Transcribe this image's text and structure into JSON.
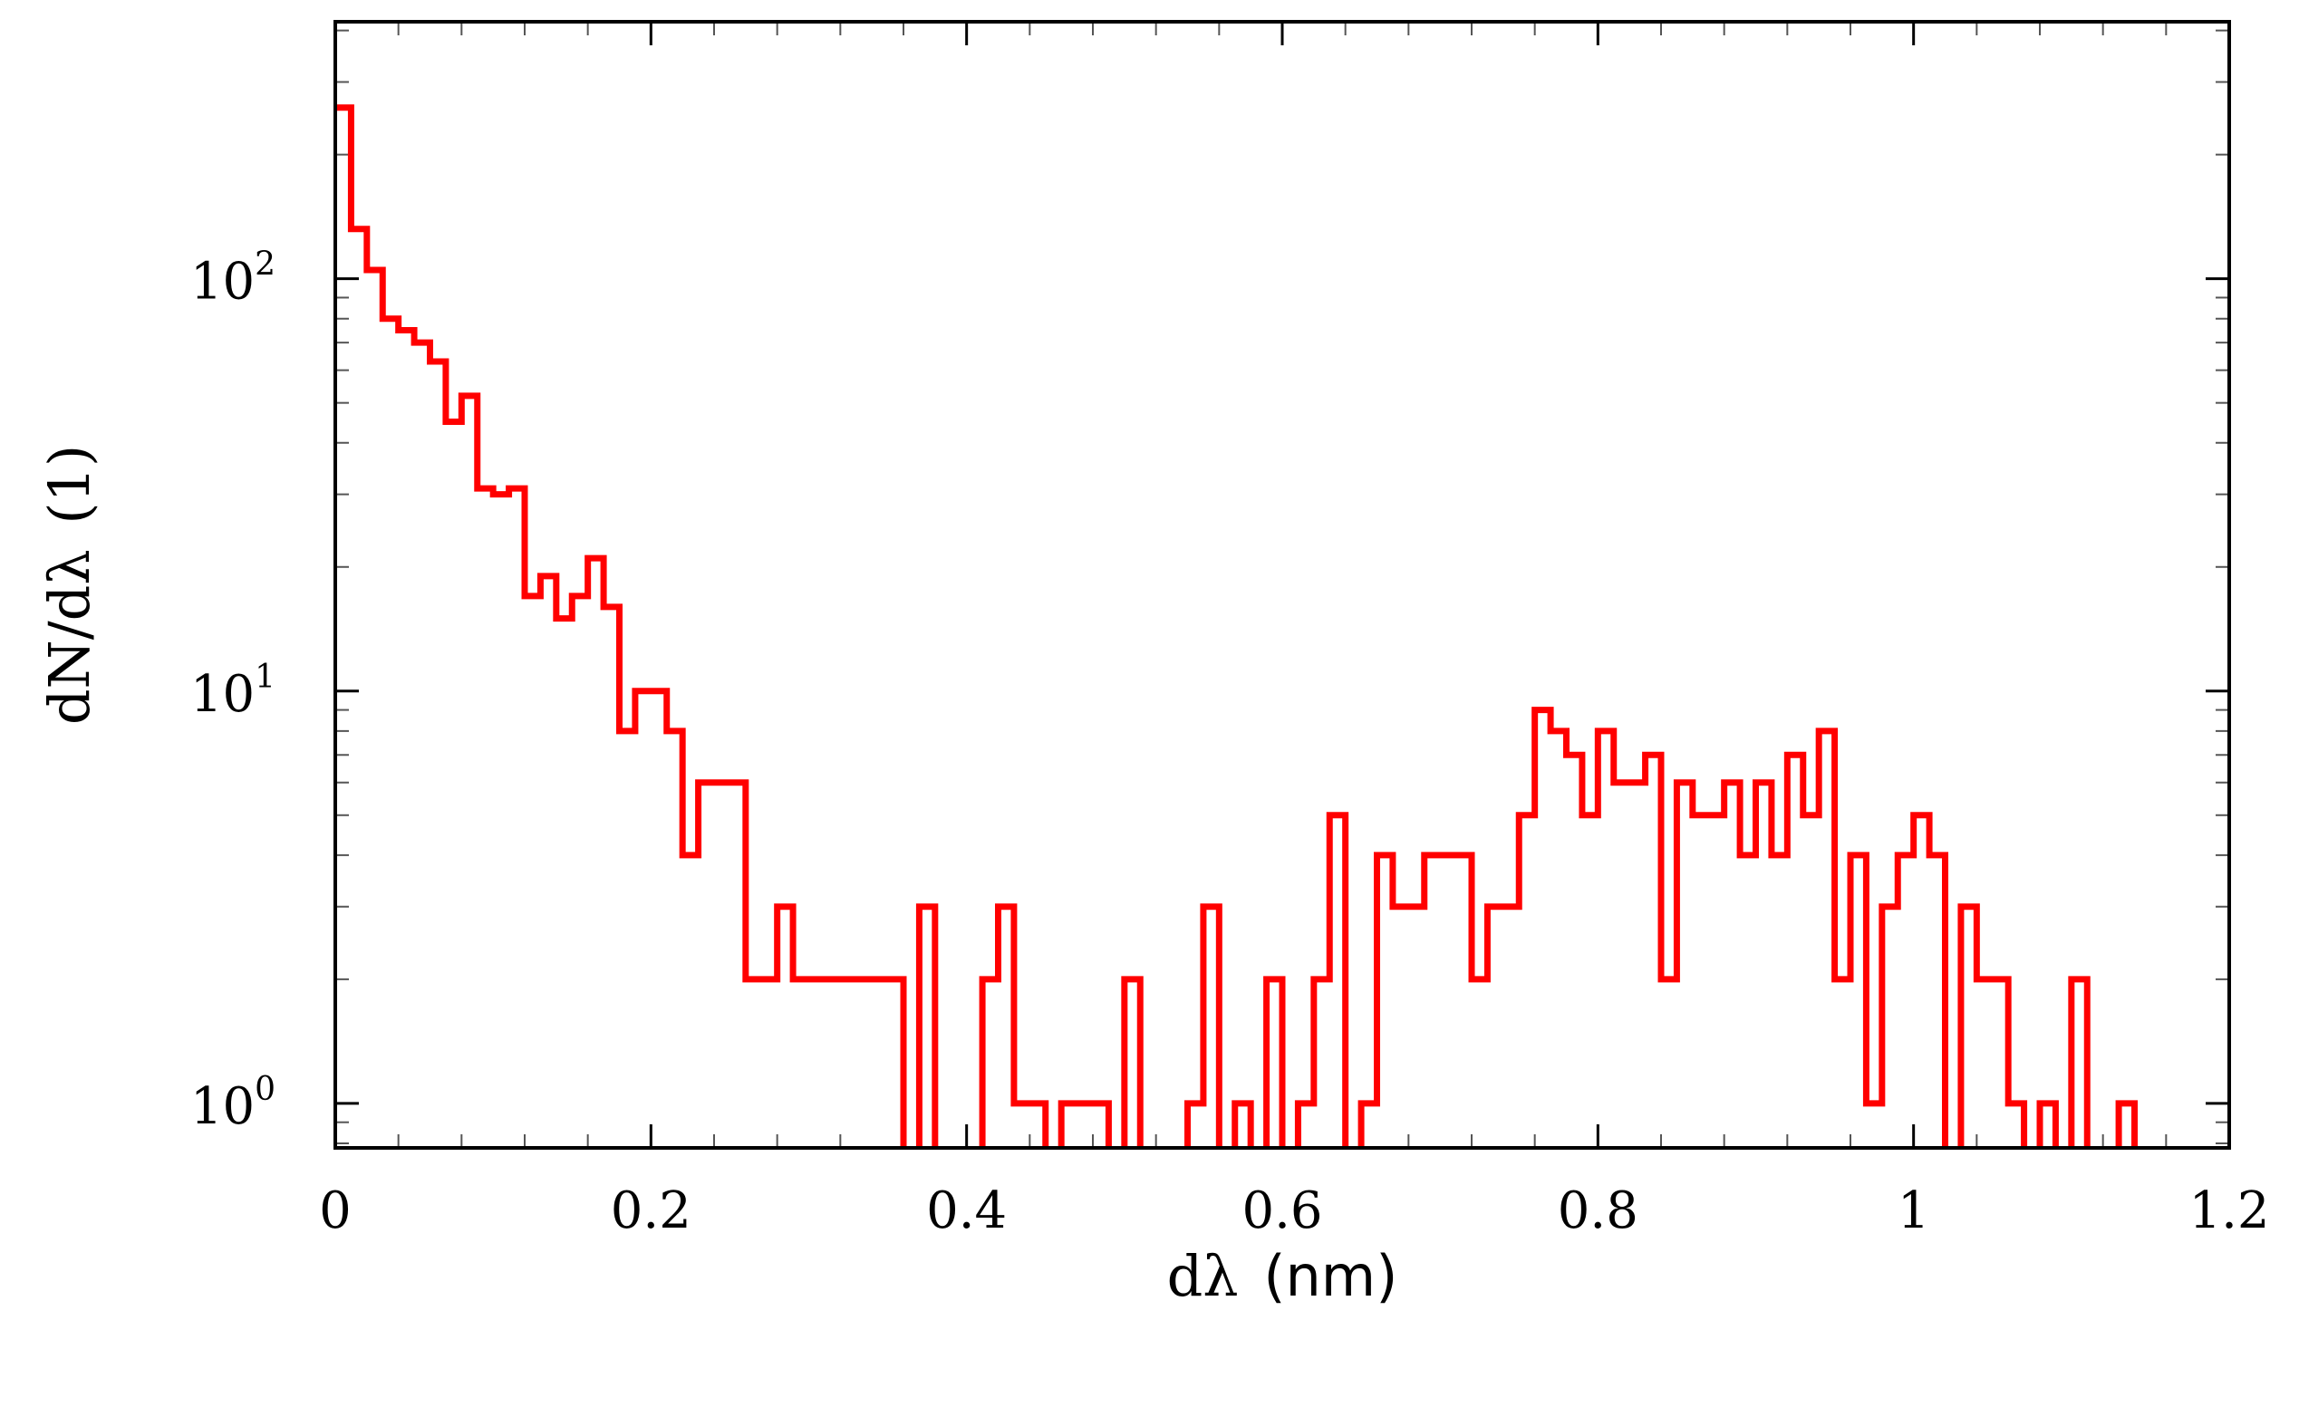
{
  "chart_data": {
    "type": "histogram",
    "xlabel": {
      "text": "dλ",
      "unit": "(nm)"
    },
    "ylabel": {
      "text": "dN/dλ",
      "unit": "(1)"
    },
    "xlim": [
      0,
      1.2
    ],
    "ylim": [
      0.78,
      420
    ],
    "yscale": "log",
    "grid": false,
    "line_color": "#ff0000",
    "x_ticks": [
      "0",
      "0.2",
      "0.4",
      "0.6",
      "0.8",
      "1",
      "1.2"
    ],
    "y_ticks": [
      {
        "base": "10",
        "exp": "0"
      },
      {
        "base": "10",
        "exp": "1"
      },
      {
        "base": "10",
        "exp": "2"
      }
    ],
    "bin_width": 0.01,
    "bin_start": 0,
    "values": [
      260,
      132,
      105,
      80,
      75,
      70,
      63,
      45,
      52,
      31,
      30,
      31,
      17,
      19,
      15,
      17,
      21,
      16,
      8,
      10,
      10,
      8,
      4,
      6,
      6,
      6,
      2,
      2,
      3,
      2,
      2,
      2,
      2,
      2,
      2,
      2,
      0,
      3,
      0,
      0,
      0,
      2,
      3,
      1,
      1,
      0,
      1,
      1,
      1,
      0,
      2,
      0,
      0,
      0,
      1,
      3,
      0,
      1,
      0,
      2,
      0,
      1,
      2,
      5,
      0,
      1,
      4,
      3,
      3,
      4,
      4,
      4,
      2,
      3,
      3,
      5,
      9,
      8,
      7,
      5,
      8,
      6,
      6,
      7,
      2,
      6,
      5,
      5,
      6,
      4,
      6,
      4,
      7,
      5,
      8,
      2,
      4,
      1,
      3,
      4,
      5,
      4,
      0,
      3,
      2,
      2,
      1,
      0,
      1,
      0,
      2,
      0,
      0,
      1,
      0
    ]
  }
}
